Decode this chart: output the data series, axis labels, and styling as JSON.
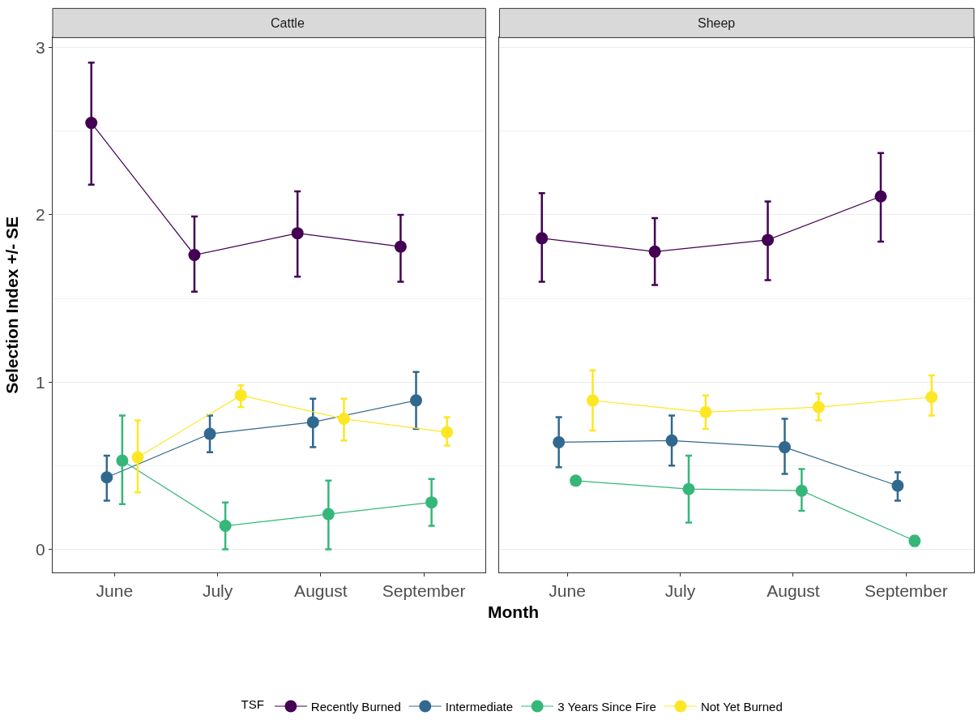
{
  "chart_data": [
    {
      "type": "line",
      "title": "Cattle",
      "xlabel": "Month",
      "ylabel": "Selection Index +/- SE",
      "legend_title": "TSF",
      "legend": "bottom",
      "marker": "circle",
      "grid": "y",
      "categories": [
        "June",
        "July",
        "August",
        "September"
      ],
      "ylim": [
        -0.14,
        3.06
      ],
      "yticks": [
        0,
        1,
        2,
        3
      ],
      "series": [
        {
          "name": "Recently Burned",
          "color": "#440154",
          "values": [
            2.55,
            1.76,
            1.89,
            1.81
          ],
          "errors": [
            [
              2.18,
              2.91
            ],
            [
              1.54,
              1.99
            ],
            [
              1.63,
              2.14
            ],
            [
              1.6,
              2.0
            ]
          ]
        },
        {
          "name": "Intermediate",
          "color": "#31688e",
          "values": [
            0.43,
            0.69,
            0.76,
            0.89
          ],
          "errors": [
            [
              0.29,
              0.56
            ],
            [
              0.58,
              0.8
            ],
            [
              0.61,
              0.9
            ],
            [
              0.72,
              1.06
            ]
          ]
        },
        {
          "name": "3 Years Since Fire",
          "color": "#35b779",
          "values": [
            0.53,
            0.14,
            0.21,
            0.28
          ],
          "errors": [
            [
              0.27,
              0.8
            ],
            [
              0.0,
              0.28
            ],
            [
              0.0,
              0.41
            ],
            [
              0.14,
              0.42
            ]
          ]
        },
        {
          "name": "Not Yet Burned",
          "color": "#fde725",
          "values": [
            0.55,
            0.92,
            0.78,
            0.7
          ],
          "errors": [
            [
              0.34,
              0.77
            ],
            [
              0.85,
              0.98
            ],
            [
              0.65,
              0.9
            ],
            [
              0.62,
              0.79
            ]
          ]
        }
      ]
    },
    {
      "type": "line",
      "title": "Sheep",
      "marker": "circle",
      "grid": "y",
      "tick_labels": "x",
      "categories": [
        "June",
        "July",
        "August",
        "September"
      ],
      "ylim": [
        -0.14,
        3.06
      ],
      "yticks": [
        0,
        1,
        2,
        3
      ],
      "series": [
        {
          "color": "#440154",
          "values": [
            1.86,
            1.78,
            1.85,
            2.11
          ],
          "errors": [
            [
              1.6,
              2.13
            ],
            [
              1.58,
              1.98
            ],
            [
              1.61,
              2.08
            ],
            [
              1.84,
              2.37
            ]
          ]
        },
        {
          "color": "#31688e",
          "values": [
            0.64,
            0.65,
            0.61,
            0.38
          ],
          "errors": [
            [
              0.49,
              0.79
            ],
            [
              0.5,
              0.8
            ],
            [
              0.45,
              0.78
            ],
            [
              0.29,
              0.46
            ]
          ]
        },
        {
          "color": "#35b779",
          "values": [
            0.41,
            0.36,
            0.35,
            0.05
          ],
          "errors": [
            null,
            [
              0.16,
              0.56
            ],
            [
              0.23,
              0.48
            ],
            [
              0.02,
              0.08
            ]
          ]
        },
        {
          "color": "#fde725",
          "values": [
            0.89,
            0.82,
            0.85,
            0.91
          ],
          "errors": [
            [
              0.71,
              1.07
            ],
            [
              0.72,
              0.92
            ],
            [
              0.77,
              0.93
            ],
            [
              0.8,
              1.04
            ]
          ]
        }
      ]
    }
  ]
}
